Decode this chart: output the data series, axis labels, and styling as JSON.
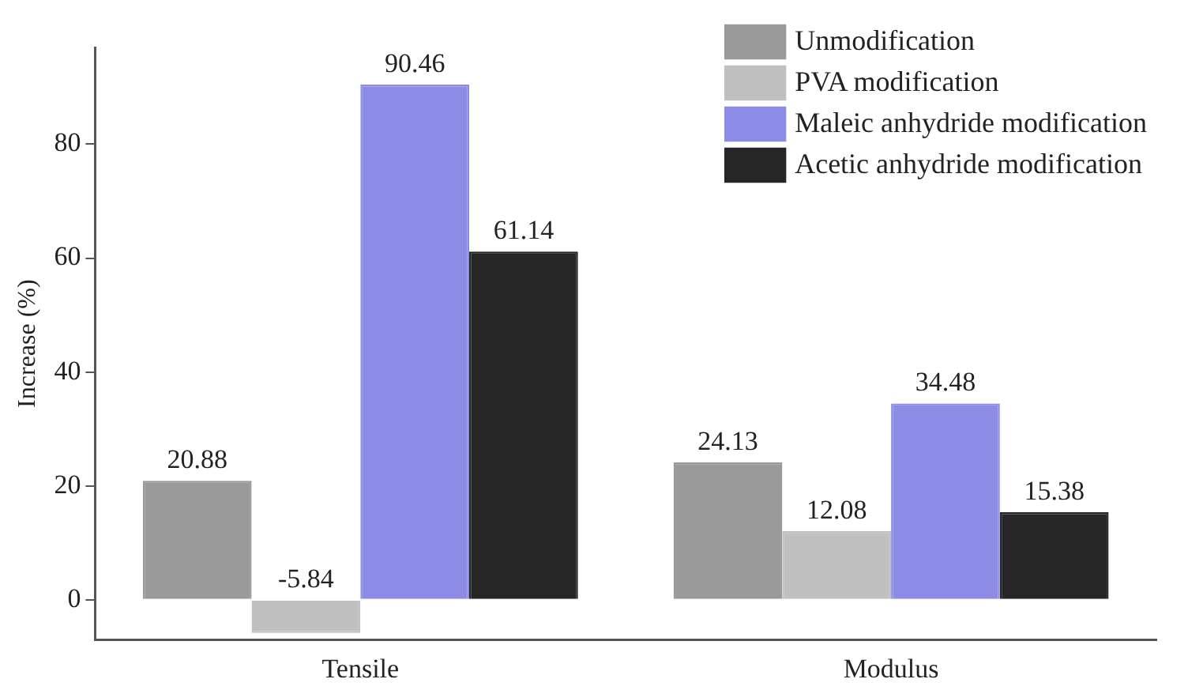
{
  "chart_data": {
    "type": "bar",
    "ylabel": "Increase (%)",
    "categories": [
      "Tensile",
      "Modulus"
    ],
    "series": [
      {
        "name": "Unmodification",
        "color": "#9a9a9a",
        "values": [
          20.88,
          24.13
        ]
      },
      {
        "name": "PVA modification",
        "color": "#c0c0c0",
        "values": [
          -5.84,
          12.08
        ]
      },
      {
        "name": "Maleic anhydride modification",
        "color": "#8c8ce6",
        "values": [
          90.46,
          34.48
        ]
      },
      {
        "name": "Acetic anhydride modification",
        "color": "#262626",
        "values": [
          61.14,
          15.38
        ]
      }
    ],
    "ylim": [
      -7,
      97
    ],
    "yticks": [
      0,
      20,
      40,
      60,
      80
    ],
    "grid": false,
    "legend": "top right",
    "data_labels": true
  }
}
